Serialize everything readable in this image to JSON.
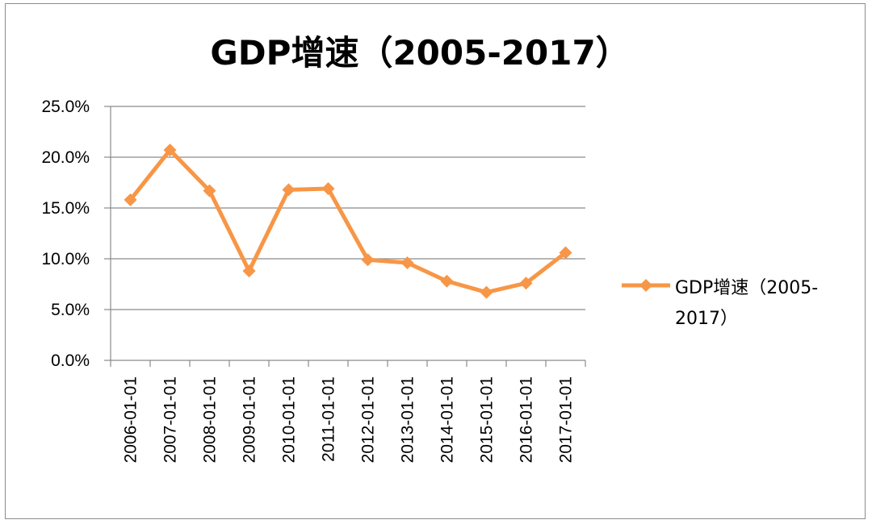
{
  "chart_data": {
    "type": "line",
    "title": "GDP增速（2005-2017）",
    "xlabel": "",
    "ylabel": "",
    "categories": [
      "2006-01-01",
      "2007-01-01",
      "2008-01-01",
      "2009-01-01",
      "2010-01-01",
      "2011-01-01",
      "2012-01-01",
      "2013-01-01",
      "2014-01-01",
      "2015-01-01",
      "2016-01-01",
      "2017-01-01"
    ],
    "series": [
      {
        "name": "GDP增速（2005-2017）",
        "legend_lines": [
          "GDP增速（2005-",
          "2017）"
        ],
        "color": "#F79646",
        "marker": "diamond",
        "values": [
          15.8,
          20.7,
          16.7,
          8.8,
          16.8,
          16.9,
          9.9,
          9.6,
          7.8,
          6.7,
          7.6,
          10.6
        ]
      }
    ],
    "y_ticks": [
      "0.0%",
      "5.0%",
      "10.0%",
      "15.0%",
      "20.0%",
      "25.0%"
    ],
    "ylim": [
      0,
      25
    ],
    "grid": true,
    "legend_position": "right"
  }
}
